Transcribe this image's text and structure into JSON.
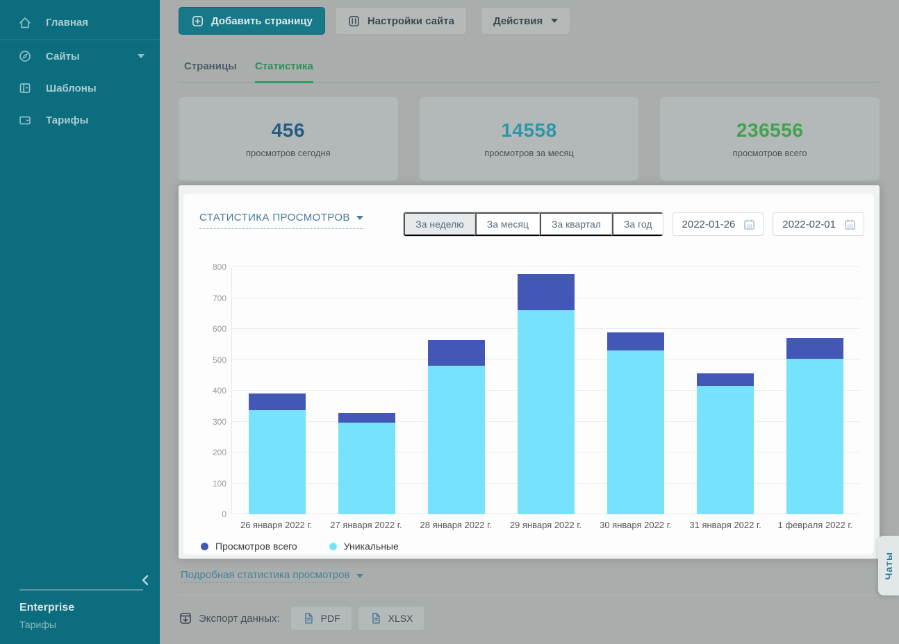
{
  "sidebar": {
    "items": [
      {
        "label": "Главная",
        "icon": "home"
      },
      {
        "label": "Сайты",
        "icon": "sites-compass",
        "has_caret": true
      },
      {
        "label": "Шаблоны",
        "icon": "templates"
      },
      {
        "label": "Тарифы",
        "icon": "tariffs-wallet"
      }
    ],
    "plan_name": "Enterprise",
    "plan_link": "Тарифы"
  },
  "toolbar": {
    "add_page": "Добавить страницу",
    "site_settings": "Настройки сайта",
    "actions": "Действия"
  },
  "tabs": [
    {
      "label": "Страницы",
      "active": false
    },
    {
      "label": "Статистика",
      "active": true
    }
  ],
  "stat_cards": [
    {
      "value": "456",
      "label": "просмотров сегодня",
      "color": "#275a7f"
    },
    {
      "value": "14558",
      "label": "просмотров за месяц",
      "color": "#2e96a6"
    },
    {
      "value": "236556",
      "label": "просмотров всего",
      "color": "#42a14e"
    }
  ],
  "panel": {
    "title": "СТАТИСТИКА ПРОСМОТРОВ",
    "period_buttons": [
      {
        "label": "За неделю",
        "active": true
      },
      {
        "label": "За месяц",
        "active": false
      },
      {
        "label": "За квартал",
        "active": false
      },
      {
        "label": "За год",
        "active": false
      }
    ],
    "date_from": "2022-01-26",
    "date_to": "2022-02-01"
  },
  "chart_data": {
    "type": "bar",
    "stacked": true,
    "title": "СТАТИСТИКА ПРОСМОТРОВ",
    "categories": [
      "26 января 2022 г.",
      "27 января 2022 г.",
      "28 января 2022 г.",
      "29 января 2022 г.",
      "30 января 2022 г.",
      "31 января 2022 г.",
      "1 февраля 2022 г."
    ],
    "series": [
      {
        "name": "Просмотров всего",
        "color": "#4357b6",
        "values": [
          390,
          328,
          565,
          777,
          588,
          456,
          570
        ]
      },
      {
        "name": "Уникальные",
        "color": "#77e2fc",
        "values": [
          338,
          297,
          482,
          660,
          530,
          415,
          503
        ]
      }
    ],
    "note": "light segment = Уникальные value; dark segment drawn from Уникальные up to Просмотров всего (total)",
    "xlabel": "",
    "ylabel": "",
    "ylim": [
      0,
      800
    ],
    "ytick_step": 100,
    "grid": true,
    "legend_position": "bottom"
  },
  "links": {
    "detailed_stats": "Подробная статистика просмотров"
  },
  "export": {
    "label": "Экспорт данных:",
    "buttons": [
      "PDF",
      "XLSX"
    ]
  },
  "chats_tab_label": "Чаты"
}
